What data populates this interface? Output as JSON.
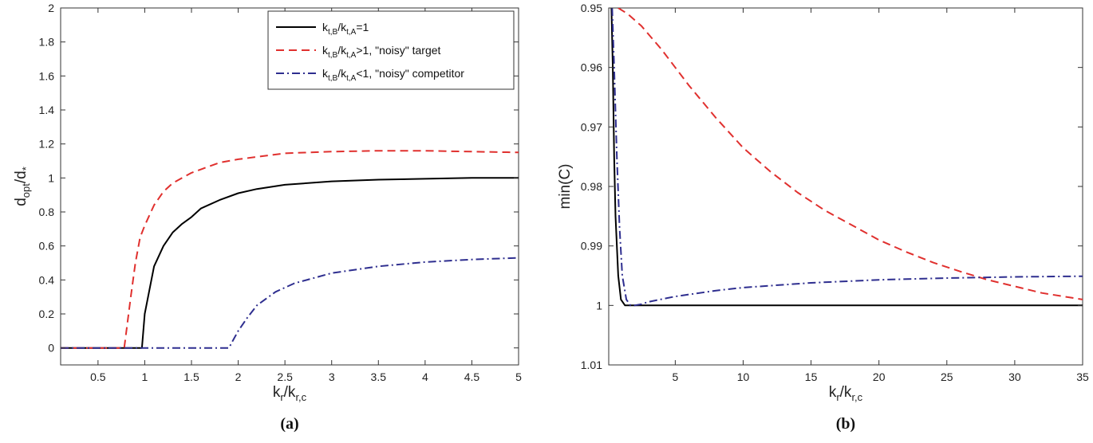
{
  "colors": {
    "series_1": "#000000",
    "series_2": "#e0302e",
    "series_3": "#2e2e8f",
    "axis": "#333333"
  },
  "chart_data": [
    {
      "type": "line",
      "panel_label": "(a)",
      "xlabel": {
        "base": "k",
        "sub1": "r",
        "mid": "/k",
        "sub2": "r,c"
      },
      "ylabel": {
        "base": "d",
        "sub1": "opt",
        "mid": "/d",
        "sub2": "*"
      },
      "xlim": [
        0.1,
        5
      ],
      "ylim": [
        -0.1,
        2
      ],
      "xticks": [
        0.5,
        1,
        1.5,
        2,
        2.5,
        3,
        3.5,
        4,
        4.5,
        5
      ],
      "xtick_labels": [
        "0.5",
        "1",
        "1.5",
        "2",
        "2.5",
        "3",
        "3.5",
        "4",
        "4.5",
        "5"
      ],
      "yticks": [
        0,
        0.2,
        0.4,
        0.6,
        0.8,
        1,
        1.2,
        1.4,
        1.6,
        1.8,
        2
      ],
      "ytick_labels": [
        "0",
        "0.2",
        "0.4",
        "0.6",
        "0.8",
        "1",
        "1.2",
        "1.4",
        "1.6",
        "1.8",
        "2"
      ],
      "grid": false,
      "legend_position": "top-right",
      "series": [
        {
          "legend": {
            "k1": "k",
            "s1": "t,B",
            "k2": "/k",
            "s2": "t,A",
            "tail": "=1"
          },
          "style": "solid",
          "x": [
            0.1,
            0.5,
            0.9,
            0.97,
            1.0,
            1.1,
            1.2,
            1.3,
            1.4,
            1.5,
            1.6,
            1.8,
            2.0,
            2.2,
            2.5,
            3.0,
            3.5,
            4.0,
            4.5,
            5.0
          ],
          "y": [
            0,
            0,
            0,
            0,
            0.2,
            0.48,
            0.6,
            0.68,
            0.73,
            0.77,
            0.82,
            0.87,
            0.91,
            0.935,
            0.96,
            0.98,
            0.99,
            0.995,
            1.0,
            1.0
          ]
        },
        {
          "legend": {
            "k1": "k",
            "s1": "t,B",
            "k2": "/k",
            "s2": "t,A",
            "tail": ">1, \"noisy\" target"
          },
          "style": "dashed",
          "x": [
            0.1,
            0.5,
            0.78,
            0.85,
            0.9,
            0.95,
            1.0,
            1.1,
            1.2,
            1.3,
            1.5,
            1.8,
            2.0,
            2.5,
            3.0,
            3.5,
            4.0,
            4.5,
            5.0
          ],
          "y": [
            0,
            0,
            0,
            0.3,
            0.5,
            0.65,
            0.72,
            0.84,
            0.92,
            0.97,
            1.03,
            1.09,
            1.11,
            1.145,
            1.155,
            1.16,
            1.16,
            1.155,
            1.15
          ],
          "marker_step": 1
        },
        {
          "legend": {
            "k1": "k",
            "s1": "t,B",
            "k2": "/k",
            "s2": "t,A",
            "tail": "<1, \"noisy\" competitor"
          },
          "style": "dashdot",
          "x": [
            0.1,
            1.0,
            1.5,
            1.9,
            1.95,
            2.0,
            2.1,
            2.2,
            2.4,
            2.6,
            3.0,
            3.5,
            4.0,
            4.5,
            5.0
          ],
          "y": [
            0,
            0,
            0,
            0,
            0.05,
            0.1,
            0.18,
            0.25,
            0.33,
            0.38,
            0.44,
            0.48,
            0.505,
            0.52,
            0.53
          ]
        }
      ]
    },
    {
      "type": "line",
      "panel_label": "(b)",
      "xlabel": {
        "base": "k",
        "sub1": "r",
        "mid": "/k",
        "sub2": "r,c"
      },
      "ylabel": {
        "text": "min(C)"
      },
      "xlim": [
        0.1,
        35
      ],
      "ylim_reversed": [
        0.95,
        1.01
      ],
      "xticks": [
        5,
        10,
        15,
        20,
        25,
        30,
        35
      ],
      "xtick_labels": [
        "5",
        "10",
        "15",
        "20",
        "25",
        "30",
        "35"
      ],
      "yticks": [
        0.95,
        0.96,
        0.97,
        0.98,
        0.99,
        1,
        1.01
      ],
      "ytick_labels": [
        "0.95",
        "0.96",
        "0.97",
        "0.98",
        "0.99",
        "1",
        "1.01"
      ],
      "grid": false,
      "series": [
        {
          "style": "solid",
          "x": [
            0.3,
            0.4,
            0.5,
            0.6,
            0.8,
            1.0,
            1.3,
            1.6,
            2.0,
            5,
            10,
            20,
            35
          ],
          "y": [
            0.95,
            0.96,
            0.975,
            0.985,
            0.995,
            0.999,
            1.0,
            1.0,
            1.0,
            1.0,
            1.0,
            1.0,
            1.0
          ]
        },
        {
          "style": "dashed",
          "x": [
            0.8,
            1.5,
            2.5,
            4,
            6,
            8,
            10,
            12,
            14,
            16,
            18,
            20,
            22,
            24,
            26,
            28,
            30,
            32,
            35
          ],
          "y": [
            0.95,
            0.951,
            0.953,
            0.957,
            0.963,
            0.9685,
            0.9735,
            0.9775,
            0.981,
            0.984,
            0.9865,
            0.989,
            0.991,
            0.9928,
            0.9943,
            0.9957,
            0.9968,
            0.9979,
            0.999
          ]
        },
        {
          "style": "dashdot",
          "x": [
            0.35,
            0.5,
            0.7,
            0.9,
            1.1,
            1.4,
            1.7,
            2.0,
            2.5,
            3,
            5,
            8,
            10,
            15,
            20,
            25,
            30,
            35
          ],
          "y": [
            0.95,
            0.96,
            0.975,
            0.987,
            0.995,
            0.999,
            1.0,
            1.0,
            0.9998,
            0.9994,
            0.9985,
            0.9975,
            0.997,
            0.9962,
            0.9957,
            0.9954,
            0.9952,
            0.9951
          ]
        }
      ]
    }
  ]
}
